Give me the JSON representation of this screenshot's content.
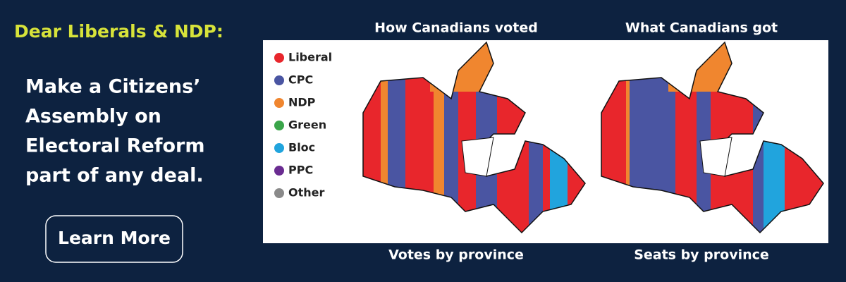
{
  "header": {
    "title": "Dear Liberals & NDP:"
  },
  "message": {
    "lines": [
      "Make a Citizens’",
      "Assembly on",
      "Electoral Reform",
      "part of any deal."
    ]
  },
  "button": {
    "label": "Learn More"
  },
  "legend": [
    {
      "label": "Liberal",
      "color": "#e8262c"
    },
    {
      "label": "CPC",
      "color": "#4a55a2"
    },
    {
      "label": "NDP",
      "color": "#f0862f"
    },
    {
      "label": "Green",
      "color": "#3aa54a"
    },
    {
      "label": "Bloc",
      "color": "#21a4dd"
    },
    {
      "label": "PPC",
      "color": "#6a2c91"
    },
    {
      "label": "Other",
      "color": "#8a8a8a"
    }
  ],
  "maps": [
    {
      "title": "How Canadians voted",
      "caption": "Votes by province"
    },
    {
      "title": "What Canadians got",
      "caption": "Seats by province"
    }
  ]
}
